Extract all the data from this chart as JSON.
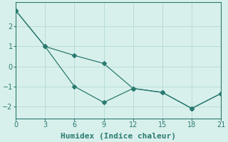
{
  "line1_x": [
    0,
    3,
    6,
    9,
    12,
    15,
    18,
    21
  ],
  "line1_y": [
    2.8,
    1.0,
    0.55,
    0.15,
    -1.1,
    -1.3,
    -2.1,
    -1.35
  ],
  "line2_x": [
    0,
    3,
    6,
    9,
    12,
    15,
    18,
    21
  ],
  "line2_y": [
    2.8,
    1.0,
    -1.0,
    -1.8,
    -1.1,
    -1.3,
    -2.1,
    -1.35
  ],
  "line_color": "#2a7a6f",
  "marker": "D",
  "marker_size": 3,
  "xlabel": "Humidex (Indice chaleur)",
  "xlim": [
    0,
    21
  ],
  "ylim": [
    -2.6,
    3.2
  ],
  "xticks": [
    0,
    3,
    6,
    9,
    12,
    15,
    18,
    21
  ],
  "yticks": [
    -2,
    -1,
    0,
    1,
    2
  ],
  "bg_color": "#d8f0ec",
  "grid_color": "#b8dcd8",
  "label_fontsize": 8
}
